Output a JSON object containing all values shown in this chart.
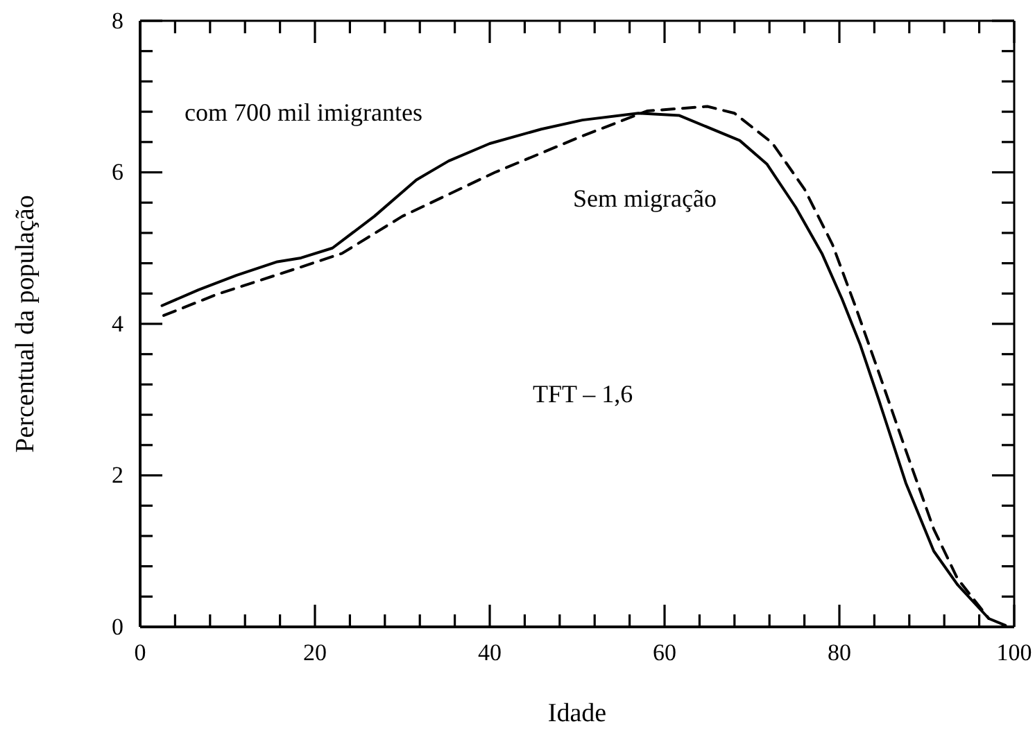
{
  "chart_data": {
    "type": "line",
    "xlabel": "Idade",
    "ylabel": "Percentual da população",
    "annotations": [
      "TFT – 1,6"
    ],
    "xlim": [
      0,
      100
    ],
    "ylim": [
      0,
      8
    ],
    "xticks": [
      0,
      {
        "value": 4,
        "label": null
      },
      {
        "value": 8,
        "label": null
      },
      {
        "value": 12,
        "label": null
      },
      {
        "value": 16,
        "label": null
      },
      20,
      {
        "value": 24,
        "label": null
      },
      {
        "value": 28,
        "label": null
      },
      {
        "value": 32,
        "label": null
      },
      {
        "value": 36,
        "label": null
      },
      40,
      {
        "value": 44,
        "label": null
      },
      {
        "value": 48,
        "label": null
      },
      {
        "value": 52,
        "label": null
      },
      {
        "value": 56,
        "label": null
      },
      60,
      {
        "value": 64,
        "label": null
      },
      {
        "value": 68,
        "label": null
      },
      {
        "value": 72,
        "label": null
      },
      {
        "value": 76,
        "label": null
      },
      80,
      {
        "value": 84,
        "label": null
      },
      {
        "value": 88,
        "label": null
      },
      {
        "value": 92,
        "label": null
      },
      {
        "value": 96,
        "label": null
      },
      100
    ],
    "yticks": [
      0,
      {
        "value": 0.4,
        "label": null
      },
      {
        "value": 0.8,
        "label": null
      },
      {
        "value": 1.2,
        "label": null
      },
      {
        "value": 1.6,
        "label": null
      },
      2,
      {
        "value": 2.4,
        "label": null
      },
      {
        "value": 2.8,
        "label": null
      },
      {
        "value": 3.2,
        "label": null
      },
      {
        "value": 3.6,
        "label": null
      },
      4,
      {
        "value": 4.4,
        "label": null
      },
      {
        "value": 4.8,
        "label": null
      },
      {
        "value": 5.2,
        "label": null
      },
      {
        "value": 5.6,
        "label": null
      },
      6,
      {
        "value": 6.4,
        "label": null
      },
      {
        "value": 6.8,
        "label": null
      },
      {
        "value": 7.2,
        "label": null
      },
      {
        "value": 7.6,
        "label": null
      },
      8
    ],
    "marker": "none",
    "series": [
      {
        "name": "com 700 mil imigrantes",
        "color": "#000000",
        "line_style": "solid",
        "x": [
          2.5,
          6.7,
          11,
          15.7,
          18.4,
          22,
          26.8,
          31.6,
          35.3,
          40,
          45.9,
          50.6,
          57,
          61.7,
          68.6,
          71.7,
          75,
          78,
          80.3,
          82.4,
          84.5,
          87.6,
          90.8,
          93.5,
          97.1,
          99
        ],
        "values": [
          4.24,
          4.45,
          4.64,
          4.82,
          4.87,
          5.0,
          5.42,
          5.9,
          6.15,
          6.38,
          6.57,
          6.69,
          6.78,
          6.75,
          6.42,
          6.11,
          5.54,
          4.93,
          4.33,
          3.72,
          3.0,
          1.9,
          1.0,
          0.56,
          0.11,
          0.02
        ]
      },
      {
        "name": "Sem migração",
        "color": "#000000",
        "line_style": "dashed",
        "x": [
          2.7,
          8.8,
          18.4,
          23.1,
          30,
          40.6,
          50.6,
          58,
          64.9,
          68,
          72.3,
          76,
          79.2,
          81.9,
          84.5,
          87.6,
          90.8,
          93.5,
          97.1
        ],
        "values": [
          4.11,
          4.39,
          4.75,
          4.93,
          5.42,
          6.0,
          6.48,
          6.81,
          6.87,
          6.78,
          6.39,
          5.78,
          5.05,
          4.21,
          3.36,
          2.33,
          1.29,
          0.64,
          0.11
        ]
      }
    ]
  }
}
